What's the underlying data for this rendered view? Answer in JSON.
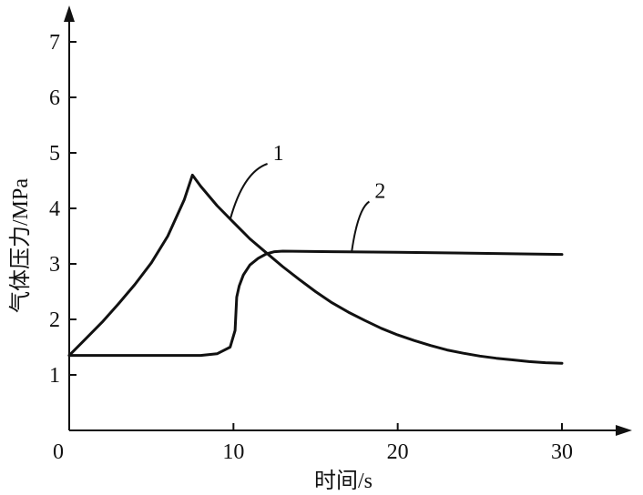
{
  "chart_data": {
    "type": "line",
    "xlabel": "时间/s",
    "ylabel": "气体压力/MPa",
    "xlim": [
      0,
      35
    ],
    "ylim": [
      0,
      7.7
    ],
    "xticks": [
      0,
      10,
      20,
      30
    ],
    "yticks": [
      1,
      2,
      3,
      4,
      5,
      6,
      7
    ],
    "xtick_labels": [
      "0",
      "10",
      "20",
      "30"
    ],
    "ytick_labels": [
      "1",
      "2",
      "3",
      "4",
      "5",
      "6",
      "7"
    ],
    "grid": false,
    "series": [
      {
        "label": "1",
        "label_at": [
          12.4,
          5.0
        ],
        "leader_from": [
          9.8,
          3.8
        ],
        "points": [
          [
            0,
            1.35
          ],
          [
            1,
            1.65
          ],
          [
            2,
            1.95
          ],
          [
            3,
            2.28
          ],
          [
            4,
            2.63
          ],
          [
            5,
            3.02
          ],
          [
            6,
            3.5
          ],
          [
            7,
            4.15
          ],
          [
            7.5,
            4.6
          ],
          [
            8,
            4.4
          ],
          [
            9,
            4.05
          ],
          [
            10,
            3.75
          ],
          [
            11,
            3.45
          ],
          [
            12,
            3.2
          ],
          [
            13,
            2.95
          ],
          [
            14,
            2.72
          ],
          [
            15,
            2.5
          ],
          [
            16,
            2.3
          ],
          [
            17,
            2.13
          ],
          [
            18,
            1.98
          ],
          [
            19,
            1.84
          ],
          [
            20,
            1.72
          ],
          [
            21,
            1.62
          ],
          [
            22,
            1.53
          ],
          [
            23,
            1.45
          ],
          [
            24,
            1.39
          ],
          [
            25,
            1.34
          ],
          [
            26,
            1.3
          ],
          [
            27,
            1.27
          ],
          [
            28,
            1.24
          ],
          [
            29,
            1.22
          ],
          [
            30,
            1.21
          ]
        ]
      },
      {
        "label": "2",
        "label_at": [
          18.6,
          4.32
        ],
        "leader_from": [
          17.2,
          3.22
        ],
        "points": [
          [
            0,
            1.35
          ],
          [
            2,
            1.35
          ],
          [
            4,
            1.35
          ],
          [
            6,
            1.35
          ],
          [
            8,
            1.35
          ],
          [
            9,
            1.38
          ],
          [
            9.8,
            1.5
          ],
          [
            10.1,
            1.8
          ],
          [
            10.2,
            2.4
          ],
          [
            10.35,
            2.6
          ],
          [
            10.6,
            2.8
          ],
          [
            11,
            2.98
          ],
          [
            11.5,
            3.1
          ],
          [
            12,
            3.18
          ],
          [
            12.5,
            3.22
          ],
          [
            13,
            3.23
          ],
          [
            16,
            3.22
          ],
          [
            20,
            3.21
          ],
          [
            25,
            3.19
          ],
          [
            30,
            3.17
          ]
        ]
      }
    ]
  }
}
